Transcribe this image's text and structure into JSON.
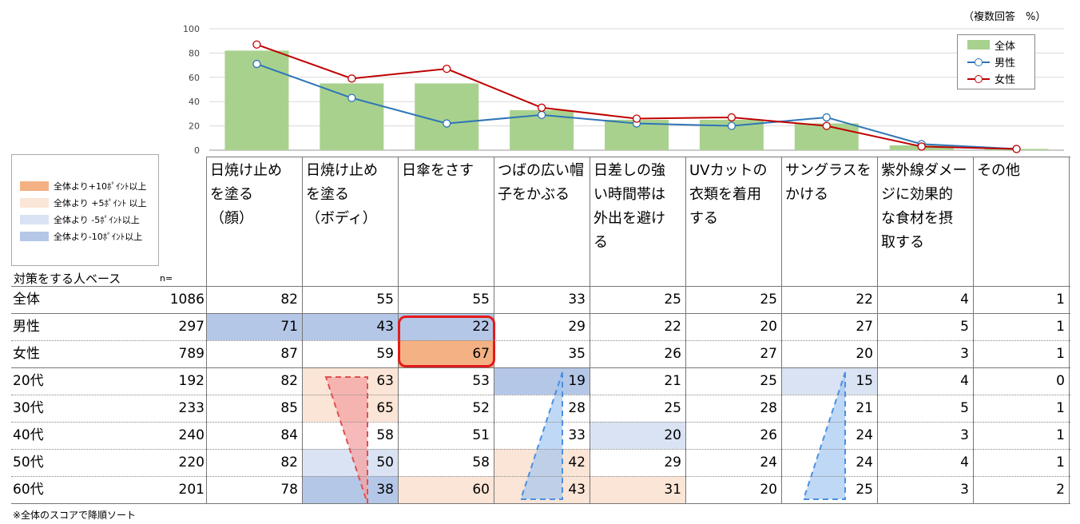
{
  "note_top": "（複数回答　%）",
  "legend": [
    {
      "label": "全体",
      "kind": "bar",
      "color": "#a9d18e"
    },
    {
      "label": "男性",
      "kind": "line",
      "color": "#2e75b6"
    },
    {
      "label": "女性",
      "kind": "line",
      "color": "#c00000"
    }
  ],
  "color_key": [
    {
      "label": "全体より+10ﾎﾟｲﾝﾄ以上",
      "color": "#f4b183"
    },
    {
      "label": "全体より +5ﾎﾟｲﾝﾄ 以上",
      "color": "#fbe5d6"
    },
    {
      "label": "全体より -5ﾎﾟｲﾝﾄ以上",
      "color": "#dae3f3"
    },
    {
      "label": "全体より-10ﾎﾟｲﾝﾄ以上",
      "color": "#b4c7e7"
    }
  ],
  "table": {
    "base_label": "対策をする人ベース",
    "n_label": "n=",
    "columns": [
      "日焼け止め\nを塗る\n（顔）",
      "日焼け止め\nを塗る\n（ボディ）",
      "日傘をさす",
      "つばの広い帽\n子をかぶる",
      "日差しの強\nい時間帯は\n外出を避け\nる",
      "UVカットの\n衣類を着用\nする",
      "サングラスを\nかける",
      "紫外線ダメー\nジに効果的\nな食材を摂\n取する",
      "その他"
    ],
    "rows": [
      {
        "name": "全体",
        "n": "1086",
        "values": [
          "82",
          "55",
          "55",
          "33",
          "25",
          "25",
          "22",
          "4",
          "1"
        ],
        "shade": [
          "",
          "",
          "",
          "",
          "",
          "",
          "",
          "",
          ""
        ]
      },
      {
        "name": "男性",
        "n": "297",
        "values": [
          "71",
          "43",
          "22",
          "29",
          "22",
          "20",
          "27",
          "5",
          "1"
        ],
        "shade": [
          "m10",
          "m10",
          "m10",
          "",
          "",
          "",
          "",
          "",
          ""
        ]
      },
      {
        "name": "女性",
        "n": "789",
        "values": [
          "87",
          "59",
          "67",
          "35",
          "26",
          "27",
          "20",
          "3",
          "1"
        ],
        "shade": [
          "",
          "",
          "p10",
          "",
          "",
          "",
          "",
          "",
          ""
        ]
      },
      {
        "name": "20代",
        "n": "192",
        "values": [
          "82",
          "63",
          "53",
          "19",
          "21",
          "25",
          "15",
          "4",
          "0"
        ],
        "shade": [
          "",
          "p5",
          "",
          "m10",
          "",
          "",
          "m5",
          "",
          ""
        ]
      },
      {
        "name": "30代",
        "n": "233",
        "values": [
          "85",
          "65",
          "52",
          "28",
          "25",
          "28",
          "21",
          "5",
          "1"
        ],
        "shade": [
          "",
          "p5",
          "",
          "",
          "",
          "",
          "",
          "",
          ""
        ]
      },
      {
        "name": "40代",
        "n": "240",
        "values": [
          "84",
          "58",
          "51",
          "33",
          "20",
          "26",
          "24",
          "3",
          "1"
        ],
        "shade": [
          "",
          "",
          "",
          "",
          "m5",
          "",
          "",
          "",
          ""
        ]
      },
      {
        "name": "50代",
        "n": "220",
        "values": [
          "82",
          "50",
          "58",
          "42",
          "29",
          "24",
          "24",
          "4",
          "1"
        ],
        "shade": [
          "",
          "m5",
          "",
          "p5",
          "",
          "",
          "",
          "",
          ""
        ]
      },
      {
        "name": "60代",
        "n": "201",
        "values": [
          "78",
          "38",
          "60",
          "43",
          "31",
          "20",
          "25",
          "3",
          "2"
        ],
        "shade": [
          "",
          "m10",
          "p5",
          "p5",
          "p5",
          "",
          "",
          "",
          ""
        ]
      }
    ]
  },
  "footnote": "※全体のスコアで降順ソート",
  "chart_data": {
    "type": "bar",
    "categories": [
      "日焼け止めを塗る（顔）",
      "日焼け止めを塗る（ボディ）",
      "日傘をさす",
      "つばの広い帽子をかぶる",
      "日差しの強い時間帯は外出を避ける",
      "UVカットの衣類を着用する",
      "サングラスをかける",
      "紫外線ダメージに効果的な食材を摂取する",
      "その他"
    ],
    "ylim": [
      0,
      100
    ],
    "yticks": [
      0,
      20,
      40,
      60,
      80,
      100
    ],
    "series": [
      {
        "name": "全体",
        "type": "bar",
        "color": "#a9d18e",
        "values": [
          82,
          55,
          55,
          33,
          25,
          25,
          22,
          4,
          1
        ]
      },
      {
        "name": "男性",
        "type": "line",
        "color": "#2e75b6",
        "values": [
          71,
          43,
          22,
          29,
          22,
          20,
          27,
          5,
          1
        ]
      },
      {
        "name": "女性",
        "type": "line",
        "color": "#c00000",
        "values": [
          87,
          59,
          67,
          35,
          26,
          27,
          20,
          3,
          1
        ]
      }
    ],
    "legend_position": "top-right",
    "grid": true
  }
}
